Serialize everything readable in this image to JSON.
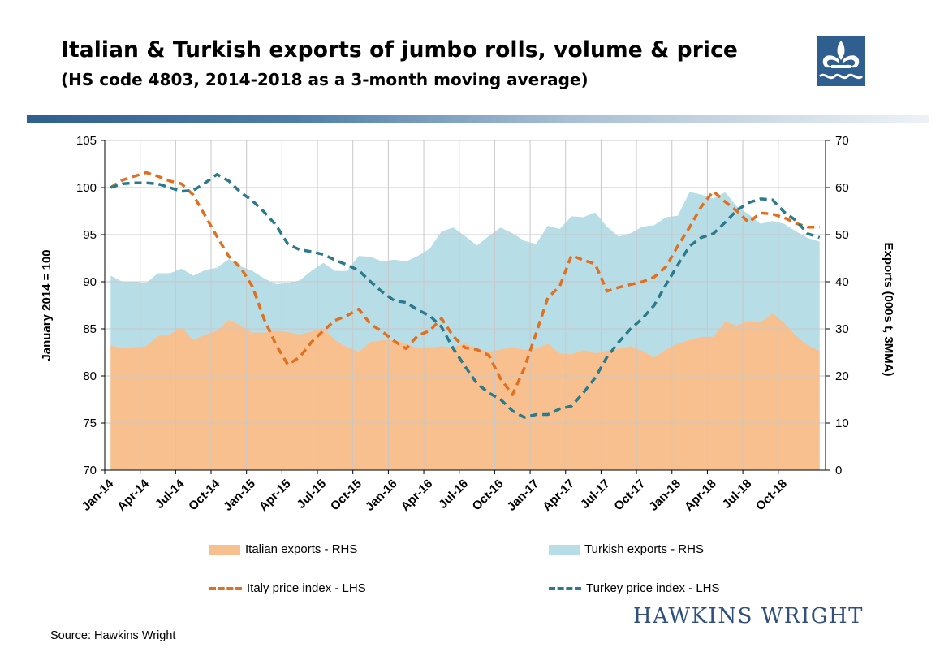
{
  "title": "Italian & Turkish exports of jumbo rolls, volume & price",
  "subtitle": "(HS code 4803, 2014-2018 as a 3-month moving average)",
  "source": "Source: Hawkins Wright",
  "brand": "HAWKINS WRIGHT",
  "logo_icon": "fleur-de-lis-icon",
  "colors": {
    "italian_exports": "#f9c08f",
    "turkish_exports": "#b7dde6",
    "italy_price": "#e07020",
    "turkey_price": "#2a7a8c",
    "rule_start": "#2f5f8f",
    "brand": "#2f4f7f"
  },
  "chart_data": {
    "type": "area",
    "ylabel_left": "January 2014 = 100",
    "ylabel_right": "Exports (000s t, 3MMA)",
    "ylim_left": [
      70,
      105
    ],
    "ylim_right": [
      0,
      70
    ],
    "yticks_left": [
      "70",
      "75",
      "80",
      "85",
      "90",
      "95",
      "100",
      "105"
    ],
    "yticks_right": [
      "0",
      "10",
      "20",
      "30",
      "40",
      "50",
      "60",
      "70"
    ],
    "x_tick_labels": [
      "Jan-14",
      "Apr-14",
      "Jul-14",
      "Oct-14",
      "Jan-15",
      "Apr-15",
      "Jul-15",
      "Oct-15",
      "Jan-16",
      "Apr-16",
      "Jul-16",
      "Oct-16",
      "Jan-17",
      "Apr-17",
      "Jul-17",
      "Oct-17",
      "Jan-18",
      "Apr-18",
      "Jul-18",
      "Oct-18"
    ],
    "x_tick_every_months": 3,
    "grid": true,
    "legend_position": "bottom",
    "series": [
      {
        "name": "Italian exports - RHS",
        "type": "area",
        "axis": "right",
        "values": [
          26.5,
          25.8,
          26.1,
          26.3,
          28.5,
          28.8,
          30.3,
          27.6,
          28.8,
          29.6,
          31.9,
          30.7,
          29.2,
          29.2,
          29.6,
          29.3,
          28.8,
          29.4,
          30.1,
          27.6,
          26.1,
          25.1,
          27.2,
          27.6,
          27.6,
          26.9,
          25.8,
          26.1,
          26.3,
          26.1,
          26.9,
          25.8,
          25.1,
          25.6,
          26.1,
          25.5,
          25.8,
          26.8,
          24.8,
          24.6,
          25.5,
          24.8,
          25.3,
          25.8,
          26.3,
          25.3,
          23.9,
          25.6,
          26.8,
          27.7,
          28.3,
          28.3,
          31.5,
          30.7,
          31.7,
          31.3,
          33.3,
          31.3,
          28.5,
          26.5,
          25.3
        ]
      },
      {
        "name": "Turkish exports - RHS",
        "type": "area_total",
        "axis": "right",
        "values": [
          41.3,
          40.0,
          40.0,
          39.7,
          41.8,
          41.8,
          42.8,
          41.3,
          42.5,
          43.0,
          44.8,
          43.3,
          42.3,
          40.7,
          39.5,
          39.7,
          40.3,
          42.3,
          44.0,
          42.3,
          42.3,
          45.5,
          45.3,
          44.3,
          44.7,
          44.3,
          45.5,
          47.0,
          50.7,
          51.5,
          49.7,
          47.7,
          49.7,
          51.5,
          50.3,
          48.7,
          48.0,
          51.9,
          51.2,
          53.9,
          53.7,
          54.7,
          51.7,
          49.6,
          50.3,
          51.7,
          52.0,
          53.7,
          54.0,
          59.1,
          58.5,
          57.7,
          59.0,
          56.0,
          54.3,
          52.3,
          52.9,
          52.3,
          50.7,
          49.3,
          48.5
        ]
      },
      {
        "name": "Italy price index - LHS",
        "type": "line",
        "axis": "left",
        "values": [
          100.0,
          100.8,
          101.2,
          101.6,
          101.2,
          100.7,
          100.4,
          99.2,
          97.0,
          94.8,
          92.7,
          91.5,
          89.5,
          86.0,
          83.3,
          81.2,
          82.0,
          83.6,
          84.8,
          85.9,
          86.4,
          87.1,
          85.5,
          84.7,
          83.7,
          82.9,
          84.3,
          84.8,
          86.1,
          84.2,
          83.0,
          82.8,
          82.2,
          79.7,
          78.0,
          80.8,
          84.5,
          88.3,
          89.5,
          92.8,
          92.3,
          91.9,
          89.0,
          89.4,
          89.7,
          90.0,
          90.5,
          91.6,
          93.8,
          95.8,
          98.0,
          99.6,
          98.5,
          97.5,
          96.3,
          97.3,
          97.2,
          96.8,
          96.2,
          95.8,
          95.8
        ]
      },
      {
        "name": "Turkey price index - LHS",
        "type": "line",
        "axis": "left",
        "values": [
          100.0,
          100.4,
          100.5,
          100.5,
          100.4,
          100.0,
          99.6,
          99.7,
          100.5,
          101.4,
          100.7,
          99.5,
          98.6,
          97.4,
          96.0,
          94.0,
          93.4,
          93.2,
          92.9,
          92.3,
          91.8,
          91.2,
          90.0,
          88.9,
          88.0,
          87.8,
          87.0,
          86.4,
          85.2,
          82.9,
          81.0,
          79.2,
          78.2,
          77.5,
          76.3,
          75.6,
          75.9,
          75.9,
          76.5,
          76.8,
          78.2,
          79.8,
          82.0,
          83.6,
          85.0,
          86.1,
          87.5,
          89.7,
          91.8,
          93.8,
          94.7,
          95.1,
          96.3,
          97.6,
          98.4,
          98.8,
          98.7,
          97.4,
          96.5,
          95.1,
          94.7
        ]
      }
    ]
  }
}
